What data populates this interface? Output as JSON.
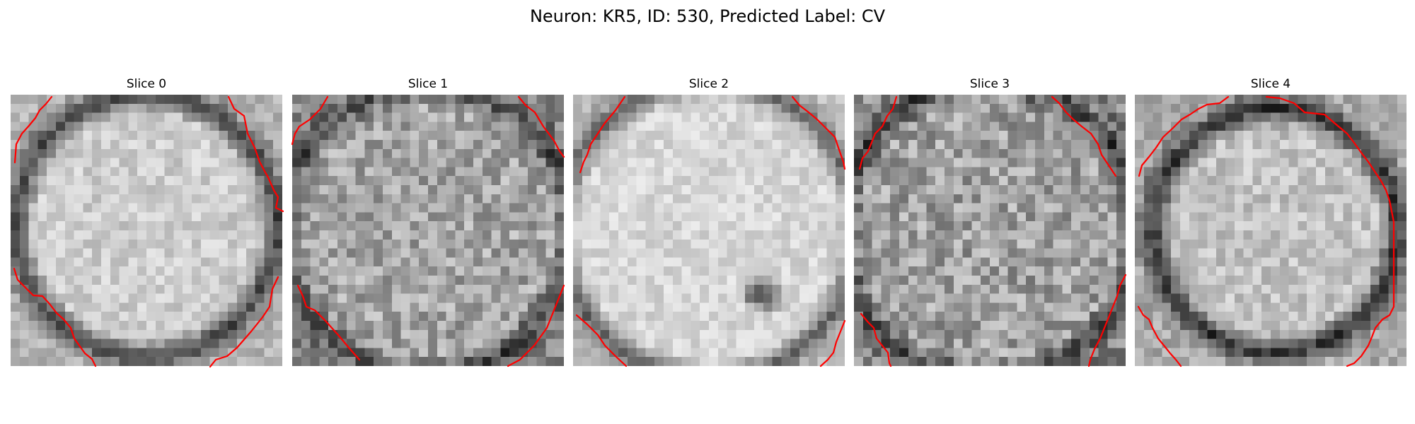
{
  "figure": {
    "title": "Neuron: KR5, ID: 530, Predicted Label: CV",
    "colors": {
      "background": "#ffffff",
      "contour": "#ff0000",
      "colormap": "gray"
    },
    "panels": [
      {
        "title": "Slice 0",
        "index": 0
      },
      {
        "title": "Slice 1",
        "index": 1
      },
      {
        "title": "Slice 2",
        "index": 2
      },
      {
        "title": "Slice 3",
        "index": 3
      },
      {
        "title": "Slice 4",
        "index": 4
      }
    ]
  }
}
